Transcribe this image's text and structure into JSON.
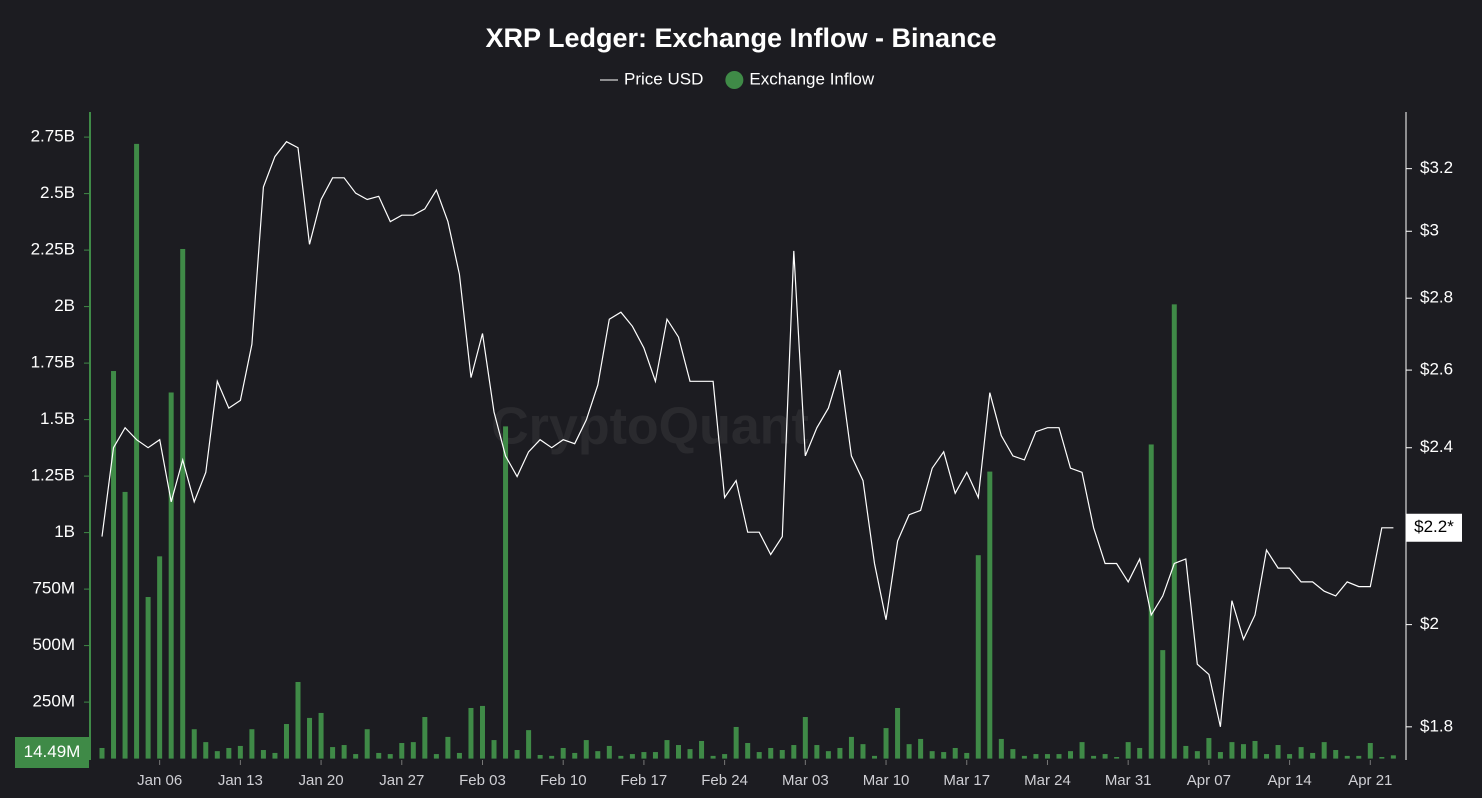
{
  "chart_data": {
    "type": "combo",
    "title": "XRP Ledger: Exchange Inflow - Binance",
    "watermark": "CryptoQuant",
    "categories": [
      "Jan 01",
      "Jan 02",
      "Jan 03",
      "Jan 04",
      "Jan 05",
      "Jan 06",
      "Jan 07",
      "Jan 08",
      "Jan 09",
      "Jan 10",
      "Jan 11",
      "Jan 12",
      "Jan 13",
      "Jan 14",
      "Jan 15",
      "Jan 16",
      "Jan 17",
      "Jan 18",
      "Jan 19",
      "Jan 20",
      "Jan 21",
      "Jan 22",
      "Jan 23",
      "Jan 24",
      "Jan 25",
      "Jan 26",
      "Jan 27",
      "Jan 28",
      "Jan 29",
      "Jan 30",
      "Jan 31",
      "Feb 01",
      "Feb 02",
      "Feb 03",
      "Feb 04",
      "Feb 05",
      "Feb 06",
      "Feb 07",
      "Feb 08",
      "Feb 09",
      "Feb 10",
      "Feb 11",
      "Feb 12",
      "Feb 13",
      "Feb 14",
      "Feb 15",
      "Feb 16",
      "Feb 17",
      "Feb 18",
      "Feb 19",
      "Feb 20",
      "Feb 21",
      "Feb 22",
      "Feb 23",
      "Feb 24",
      "Feb 25",
      "Feb 26",
      "Feb 27",
      "Feb 28",
      "Mar 01",
      "Mar 02",
      "Mar 03",
      "Mar 04",
      "Mar 05",
      "Mar 06",
      "Mar 07",
      "Mar 08",
      "Mar 09",
      "Mar 10",
      "Mar 11",
      "Mar 12",
      "Mar 13",
      "Mar 14",
      "Mar 15",
      "Mar 16",
      "Mar 17",
      "Mar 18",
      "Mar 19",
      "Mar 20",
      "Mar 21",
      "Mar 22",
      "Mar 23",
      "Mar 24",
      "Mar 25",
      "Mar 26",
      "Mar 27",
      "Mar 28",
      "Mar 29",
      "Mar 30",
      "Mar 31",
      "Apr 01",
      "Apr 02",
      "Apr 03",
      "Apr 04",
      "Apr 05",
      "Apr 06",
      "Apr 07",
      "Apr 08",
      "Apr 09",
      "Apr 10",
      "Apr 11",
      "Apr 12",
      "Apr 13",
      "Apr 14",
      "Apr 15",
      "Apr 16",
      "Apr 17",
      "Apr 18",
      "Apr 19",
      "Apr 20",
      "Apr 21",
      "Apr 22",
      "Apr 23"
    ],
    "xticks": [
      "Jan 06",
      "Jan 13",
      "Jan 20",
      "Jan 27",
      "Feb 03",
      "Feb 10",
      "Feb 17",
      "Feb 24",
      "Mar 03",
      "Mar 10",
      "Mar 17",
      "Mar 24",
      "Mar 31",
      "Apr 07",
      "Apr 14",
      "Apr 21"
    ],
    "series": [
      {
        "name": "Price USD",
        "type": "line",
        "axis": "y2",
        "color": "#ffffff",
        "values": [
          2.19,
          2.4,
          2.45,
          2.42,
          2.4,
          2.42,
          2.27,
          2.37,
          2.27,
          2.34,
          2.57,
          2.5,
          2.52,
          2.67,
          3.14,
          3.24,
          3.29,
          3.27,
          2.96,
          3.1,
          3.17,
          3.17,
          3.12,
          3.1,
          3.11,
          3.03,
          3.05,
          3.05,
          3.07,
          3.13,
          3.03,
          2.87,
          2.58,
          2.7,
          2.49,
          2.38,
          2.33,
          2.39,
          2.42,
          2.4,
          2.42,
          2.41,
          2.47,
          2.56,
          2.74,
          2.76,
          2.72,
          2.66,
          2.57,
          2.74,
          2.69,
          2.57,
          2.57,
          2.57,
          2.28,
          2.32,
          2.2,
          2.2,
          2.15,
          2.19,
          2.94,
          2.38,
          2.45,
          2.5,
          2.6,
          2.38,
          2.32,
          2.13,
          2.01,
          2.18,
          2.24,
          2.25,
          2.35,
          2.39,
          2.29,
          2.34,
          2.28,
          2.54,
          2.43,
          2.38,
          2.37,
          2.44,
          2.45,
          2.45,
          2.35,
          2.34,
          2.21,
          2.13,
          2.13,
          2.09,
          2.14,
          2.02,
          2.06,
          2.13,
          2.14,
          1.92,
          1.9,
          1.8,
          2.05,
          1.97,
          2.02,
          2.16,
          2.12,
          2.12,
          2.09,
          2.09,
          2.07,
          2.06,
          2.09,
          2.08,
          2.08,
          2.21,
          2.21
        ],
        "value_labels": {
          "112": "$2.2*"
        }
      },
      {
        "name": "Exchange Inflow",
        "type": "bar",
        "axis": "y",
        "color": "#3f8a47",
        "values": [
          47000000,
          1715000000,
          1180000000,
          2720000000,
          715000000,
          895000000,
          1620000000,
          2255000000,
          130000000,
          73000000,
          33000000,
          47000000,
          56000000,
          130000000,
          38000000,
          25000000,
          153000000,
          339000000,
          180000000,
          202000000,
          51000000,
          60000000,
          20000000,
          130000000,
          25000000,
          20000000,
          69000000,
          73000000,
          184000000,
          20000000,
          96000000,
          25000000,
          224000000,
          233000000,
          82000000,
          1470000000,
          38000000,
          126000000,
          16000000,
          12000000,
          47000000,
          25000000,
          82000000,
          33000000,
          56000000,
          12000000,
          20000000,
          29000000,
          29000000,
          82000000,
          60000000,
          42000000,
          78000000,
          12000000,
          20000000,
          140000000,
          69000000,
          29000000,
          47000000,
          38000000,
          60000000,
          184000000,
          60000000,
          33000000,
          47000000,
          96000000,
          64000000,
          12000000,
          135000000,
          224000000,
          64000000,
          87000000,
          33000000,
          29000000,
          47000000,
          25000000,
          900000000,
          1270000000,
          87000000,
          42000000,
          12000000,
          20000000,
          20000000,
          20000000,
          33000000,
          73000000,
          12000000,
          20000000,
          7000000,
          73000000,
          47000000,
          1390000000,
          480000000,
          2010000000,
          56000000,
          33000000,
          91000000,
          29000000,
          73000000,
          64000000,
          78000000,
          20000000,
          60000000,
          20000000,
          51000000,
          25000000,
          73000000,
          38000000,
          12000000,
          12000000,
          69000000,
          7000000,
          14490000
        ],
        "value_labels": {
          "112": "14.49M"
        }
      }
    ],
    "ylim": [
      0,
      2858000000
    ],
    "yticks": [
      {
        "value": 250000000,
        "label": "250M"
      },
      {
        "value": 500000000,
        "label": "500M"
      },
      {
        "value": 750000000,
        "label": "750M"
      },
      {
        "value": 1000000000,
        "label": "1B"
      },
      {
        "value": 1250000000,
        "label": "1.25B"
      },
      {
        "value": 1500000000,
        "label": "1.5B"
      },
      {
        "value": 1750000000,
        "label": "1.75B"
      },
      {
        "value": 2000000000,
        "label": "2B"
      },
      {
        "value": 2250000000,
        "label": "2.25B"
      },
      {
        "value": 2500000000,
        "label": "2.5B"
      },
      {
        "value": 2750000000,
        "label": "2.75B"
      }
    ],
    "y2lim": [
      1.742,
      3.39
    ],
    "y2log": true,
    "y2ticks": [
      {
        "value": 1.8,
        "label": "$1.8"
      },
      {
        "value": 2,
        "label": "$2"
      },
      {
        "value": 2.4,
        "label": "$2.4"
      },
      {
        "value": 2.6,
        "label": "$2.6"
      },
      {
        "value": 2.8,
        "label": "$2.8"
      },
      {
        "value": 3,
        "label": "$3"
      },
      {
        "value": 3.2,
        "label": "$3.2"
      }
    ],
    "grid": false,
    "legend": "top"
  }
}
